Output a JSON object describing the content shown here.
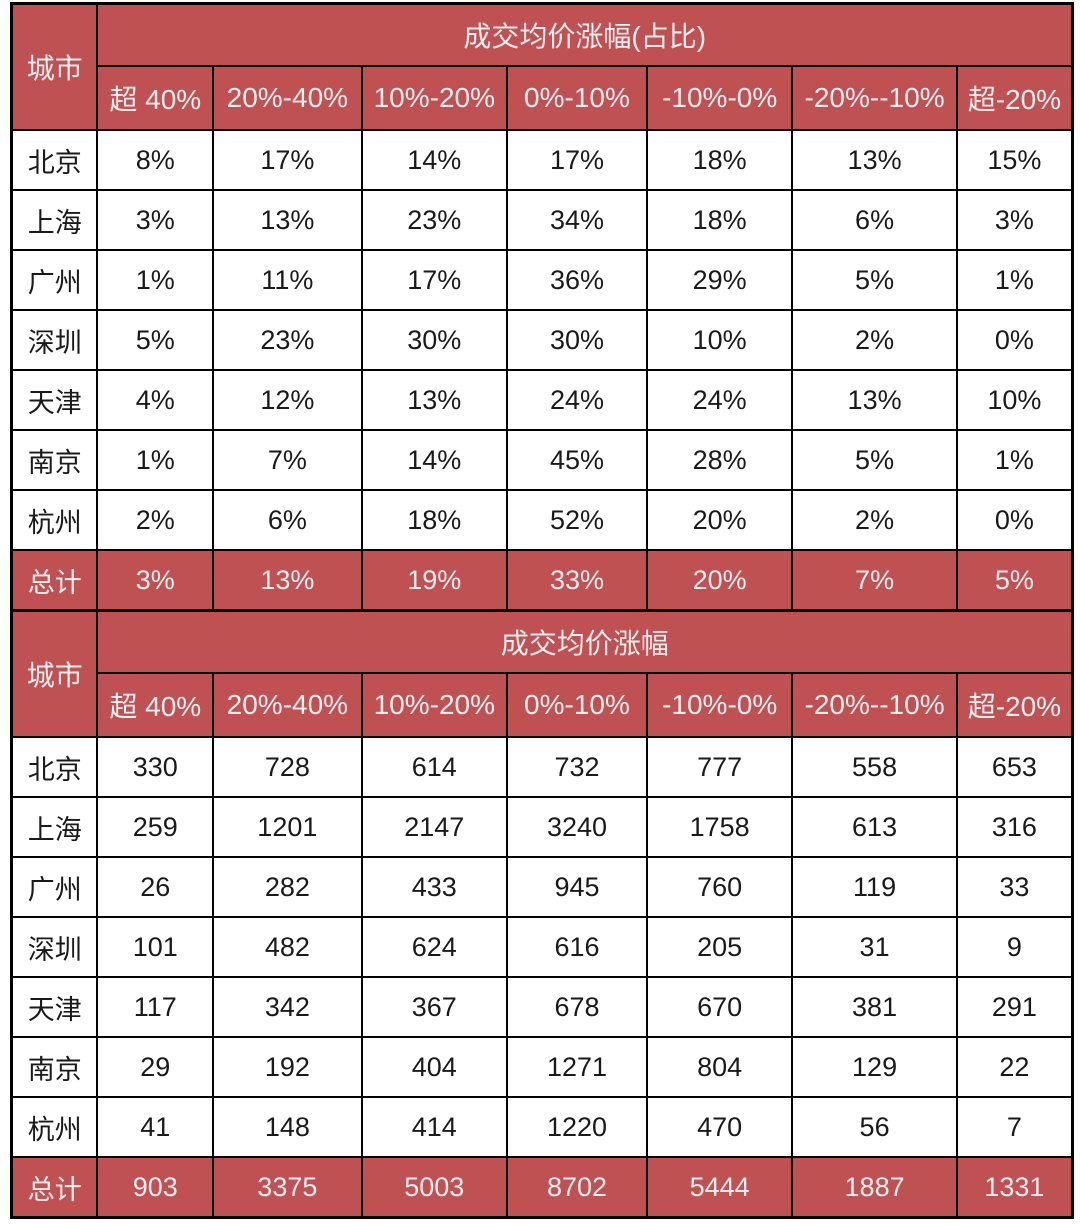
{
  "colors": {
    "header_bg": "#bf5153",
    "header_text": "#f7efef",
    "cell_text": "#1a1a1a",
    "border": "#000000"
  },
  "layout": {
    "col_widths": [
      "8.1%",
      "10.9%",
      "14.0%",
      "13.7%",
      "13.2%",
      "13.7%",
      "15.5%",
      "10.9%"
    ]
  },
  "chart_data": [
    {
      "type": "table",
      "title": "成交均价涨幅(占比)",
      "row_header_label": "城市",
      "columns": [
        "超 40%",
        "20%-40%",
        "10%-20%",
        "0%-10%",
        "-10%-0%",
        "-20%--10%",
        "超-20%"
      ],
      "rows": [
        {
          "city": "北京",
          "values": [
            "8%",
            "17%",
            "14%",
            "17%",
            "18%",
            "13%",
            "15%"
          ]
        },
        {
          "city": "上海",
          "values": [
            "3%",
            "13%",
            "23%",
            "34%",
            "18%",
            "6%",
            "3%"
          ]
        },
        {
          "city": "广州",
          "values": [
            "1%",
            "11%",
            "17%",
            "36%",
            "29%",
            "5%",
            "1%"
          ]
        },
        {
          "city": "深圳",
          "values": [
            "5%",
            "23%",
            "30%",
            "30%",
            "10%",
            "2%",
            "0%"
          ]
        },
        {
          "city": "天津",
          "values": [
            "4%",
            "12%",
            "13%",
            "24%",
            "24%",
            "13%",
            "10%"
          ]
        },
        {
          "city": "南京",
          "values": [
            "1%",
            "7%",
            "14%",
            "45%",
            "28%",
            "5%",
            "1%"
          ]
        },
        {
          "city": "杭州",
          "values": [
            "2%",
            "6%",
            "18%",
            "52%",
            "20%",
            "2%",
            "0%"
          ]
        }
      ],
      "total_row": {
        "city": "总计",
        "values": [
          "3%",
          "13%",
          "19%",
          "33%",
          "20%",
          "7%",
          "5%"
        ]
      }
    },
    {
      "type": "table",
      "title": "成交均价涨幅",
      "row_header_label": "城市",
      "columns": [
        "超 40%",
        "20%-40%",
        "10%-20%",
        "0%-10%",
        "-10%-0%",
        "-20%--10%",
        "超-20%"
      ],
      "rows": [
        {
          "city": "北京",
          "values": [
            "330",
            "728",
            "614",
            "732",
            "777",
            "558",
            "653"
          ]
        },
        {
          "city": "上海",
          "values": [
            "259",
            "1201",
            "2147",
            "3240",
            "1758",
            "613",
            "316"
          ]
        },
        {
          "city": "广州",
          "values": [
            "26",
            "282",
            "433",
            "945",
            "760",
            "119",
            "33"
          ]
        },
        {
          "city": "深圳",
          "values": [
            "101",
            "482",
            "624",
            "616",
            "205",
            "31",
            "9"
          ]
        },
        {
          "city": "天津",
          "values": [
            "117",
            "342",
            "367",
            "678",
            "670",
            "381",
            "291"
          ]
        },
        {
          "city": "南京",
          "values": [
            "29",
            "192",
            "404",
            "1271",
            "804",
            "129",
            "22"
          ]
        },
        {
          "city": "杭州",
          "values": [
            "41",
            "148",
            "414",
            "1220",
            "470",
            "56",
            "7"
          ]
        }
      ],
      "total_row": {
        "city": "总计",
        "values": [
          "903",
          "3375",
          "5003",
          "8702",
          "5444",
          "1887",
          "1331"
        ]
      }
    }
  ]
}
